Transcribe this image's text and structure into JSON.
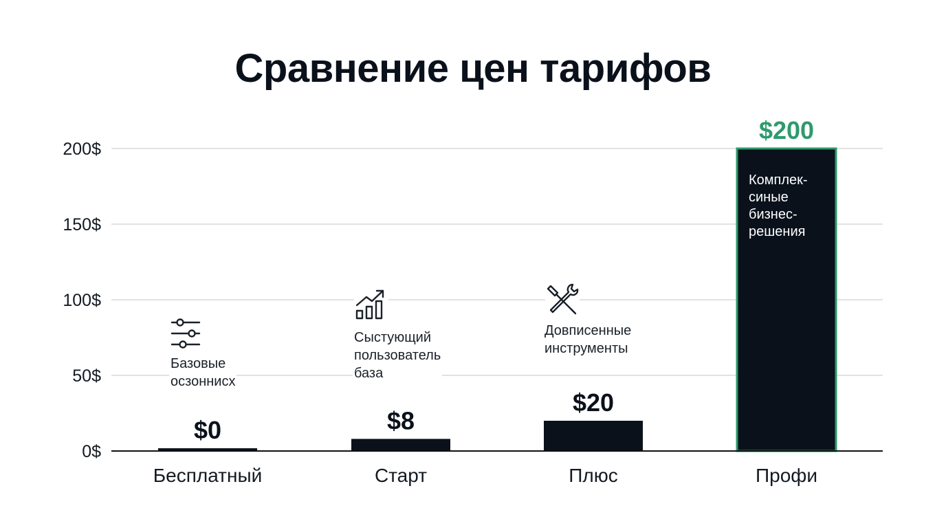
{
  "title": "Сравнение цен тарифов",
  "colors": {
    "bar": "#0a111b",
    "highlight": "#2e9a6e",
    "grid": "#d9d9d9",
    "axis": "#111111",
    "text": "#0b111b"
  },
  "chart_data": {
    "type": "bar",
    "title": "Сравнение цен тарифов",
    "xlabel": "",
    "ylabel": "",
    "categories": [
      "Бесплатный",
      "Старт",
      "Плюс",
      "Профи"
    ],
    "values": [
      0,
      8,
      20,
      200
    ],
    "value_labels": [
      "$0",
      "$8",
      "$20",
      "$200"
    ],
    "highlight_index": 3,
    "ylim": [
      0,
      200
    ],
    "yticks": [
      0,
      50,
      100,
      150,
      200
    ],
    "ytick_labels": [
      "0$",
      "50$",
      "100$",
      "150$",
      "200$"
    ],
    "grid": true,
    "legend": "none"
  },
  "annotations": {
    "free": {
      "icon": "sliders-icon",
      "text": [
        "Базовые",
        "осзоннисх"
      ]
    },
    "start": {
      "icon": "growth-chart-icon",
      "text": [
        "Сыстующий",
        "пользователь",
        "база"
      ]
    },
    "plus": {
      "icon": "tools-icon",
      "text": [
        "Довписенные",
        "инструменты"
      ]
    },
    "pro": {
      "text": [
        "Комплек-",
        "синые",
        "бизнес-",
        "решения"
      ]
    }
  }
}
